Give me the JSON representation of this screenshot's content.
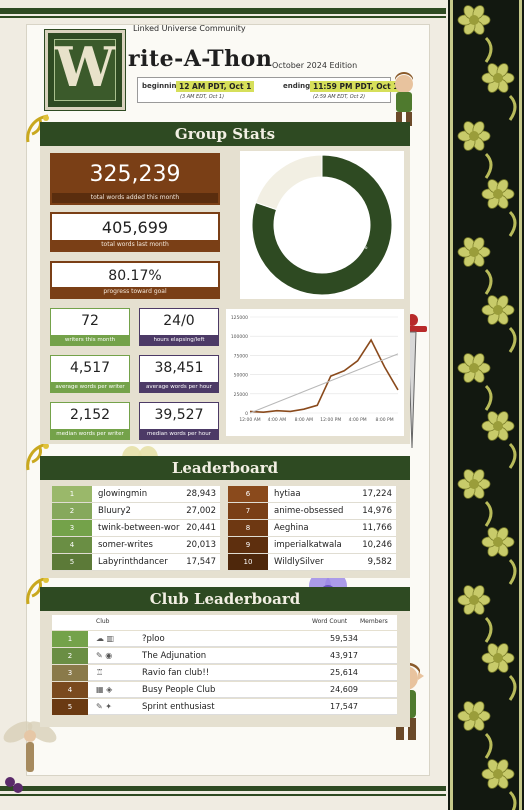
{
  "header": {
    "community": "Linked Universe Community",
    "logo_letter": "W",
    "title": "rite-A-Thon",
    "edition": "October 2024 Edition",
    "beginning_label": "beginning:",
    "beginning_value": "12 AM PDT, Oct 1",
    "beginning_sub": "(3 AM EDT, Oct 1)",
    "ending_label": "ending:",
    "ending_value": "11:59 PM PDT, Oct 1",
    "ending_sub": "(2:59 AM EDT, Oct 2)"
  },
  "group_stats": {
    "title": "Group Stats",
    "total_words": "325,239",
    "total_words_label": "total words added this month",
    "last_month": "405,699",
    "last_month_label": "total words last month",
    "progress": "80.17%",
    "progress_label": "progress toward goal",
    "writers": "72",
    "writers_label": "writers this month",
    "hours": "24/0",
    "hours_label": "hours elapsing/left",
    "avg_writer": "4,517",
    "avg_writer_label": "average words per writer",
    "avg_hour": "38,451",
    "avg_hour_label": "average words per hour",
    "median_writer": "2,152",
    "median_writer_label": "median words per writer",
    "median_hour": "39,527",
    "median_hour_label": "median words per hour",
    "donut_label": "80.2%"
  },
  "chart_data": [
    {
      "type": "pie",
      "values": [
        80.2,
        19.8
      ],
      "slice_labels": [
        "80.2%",
        ""
      ],
      "colors": [
        "#2e4a22",
        "#f2efe3"
      ]
    },
    {
      "type": "line",
      "x": [
        "12:00 AM",
        "2:00 AM",
        "4:00 AM",
        "6:00 AM",
        "8:00 AM",
        "10:00 AM",
        "12:00 PM",
        "2:00 PM",
        "4:00 PM",
        "6:00 PM",
        "8:00 PM",
        "10:00 PM"
      ],
      "x_tick_labels": [
        "12:00 AM",
        "4:00 AM",
        "8:00 AM",
        "12:00 PM",
        "4:00 PM",
        "8:00 PM"
      ],
      "series": [
        {
          "values": [
            2000,
            1000,
            3000,
            2000,
            5000,
            10000,
            48000,
            55000,
            68000,
            95000,
            60000,
            30000
          ],
          "color": "#8a4a1c"
        },
        {
          "values": [
            0,
            7000,
            14000,
            21000,
            28000,
            35000,
            42000,
            49000,
            56000,
            63000,
            70000,
            77000
          ],
          "color": "#b8b8b8"
        }
      ],
      "y_tick_labels": [
        "0",
        "25000",
        "50000",
        "75000",
        "100000",
        "125000"
      ],
      "ylim": [
        0,
        125000
      ],
      "grid": true
    }
  ],
  "leaderboard": {
    "title": "Leaderboard",
    "left": [
      {
        "rank": "1",
        "name": "glowingmin",
        "words": "28,943"
      },
      {
        "rank": "2",
        "name": "Bluury2",
        "words": "27,002"
      },
      {
        "rank": "3",
        "name": "twink-between-wor",
        "words": "20,441"
      },
      {
        "rank": "4",
        "name": "somer-writes",
        "words": "20,013"
      },
      {
        "rank": "5",
        "name": "Labyrinthdancer",
        "words": "17,547"
      }
    ],
    "right": [
      {
        "rank": "6",
        "name": "hytiaa",
        "words": "17,224"
      },
      {
        "rank": "7",
        "name": "anime-obsessed",
        "words": "14,976"
      },
      {
        "rank": "8",
        "name": "Aeghina",
        "words": "11,766"
      },
      {
        "rank": "9",
        "name": "imperialkatwala",
        "words": "10,246"
      },
      {
        "rank": "10",
        "name": "WildlySilver",
        "words": "9,582"
      }
    ]
  },
  "club_leaderboard": {
    "title": "Club Leaderboard",
    "col_club": "Club",
    "col_count": "Word Count",
    "col_members": "Members",
    "rows": [
      {
        "rank": "1",
        "icons": "☁ ▥",
        "name": "?ploo",
        "words": "59,534"
      },
      {
        "rank": "2",
        "icons": "✎ ◉",
        "name": "The Adjunation",
        "words": "43,917"
      },
      {
        "rank": "3",
        "icons": "♖",
        "name": "Ravio fan club!!",
        "words": "25,614"
      },
      {
        "rank": "4",
        "icons": "▦ ◈",
        "name": "Busy People Club",
        "words": "24,609"
      },
      {
        "rank": "5",
        "icons": "✎ ✦",
        "name": "Sprint enthusiast",
        "words": "17,547"
      }
    ]
  },
  "colors": {
    "dark_green": "#2e4a22",
    "brown": "#7a3f16",
    "green": "#74a24a",
    "purple": "#4c3a66",
    "highlight": "#d6df5a"
  }
}
